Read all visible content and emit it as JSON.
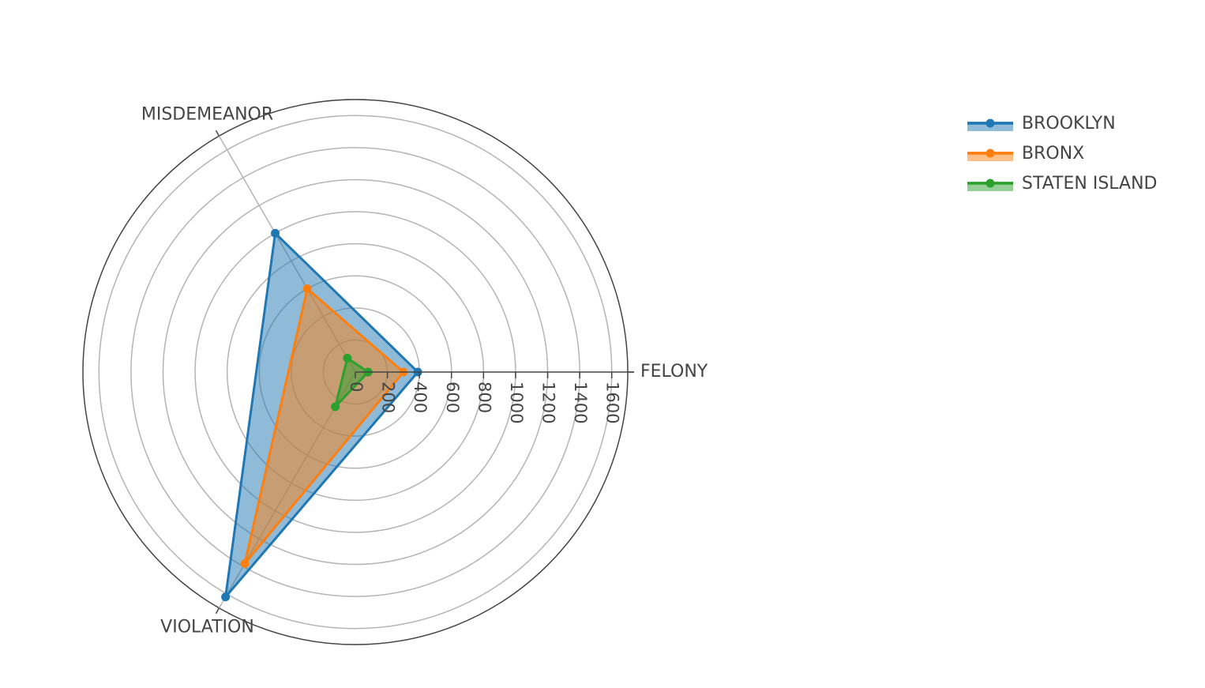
{
  "chart_data": {
    "type": "radar",
    "categories": [
      "FELONY",
      "MISDEMEANOR",
      "VIOLATION"
    ],
    "radial_axis": {
      "range": [
        0,
        1700
      ],
      "tick_values": [
        0,
        200,
        400,
        600,
        800,
        1000,
        1200,
        1400,
        1600
      ],
      "tick_labels": [
        "0",
        "200",
        "400",
        "600",
        "800",
        "1000",
        "1200",
        "1400",
        "1600"
      ]
    },
    "series": [
      {
        "name": "BROOKLYN",
        "values": [
          390,
          1000,
          1620
        ],
        "color": "#1f77b4",
        "fill": "#1f77b4"
      },
      {
        "name": "BRONX",
        "values": [
          300,
          600,
          1380
        ],
        "color": "#ff7f0e",
        "fill": "#ff7f0e"
      },
      {
        "name": "STATEN ISLAND",
        "values": [
          80,
          100,
          250
        ],
        "color": "#2ca02c",
        "fill": "#2ca02c"
      }
    ],
    "grid": true,
    "legend_position": "top-right"
  }
}
